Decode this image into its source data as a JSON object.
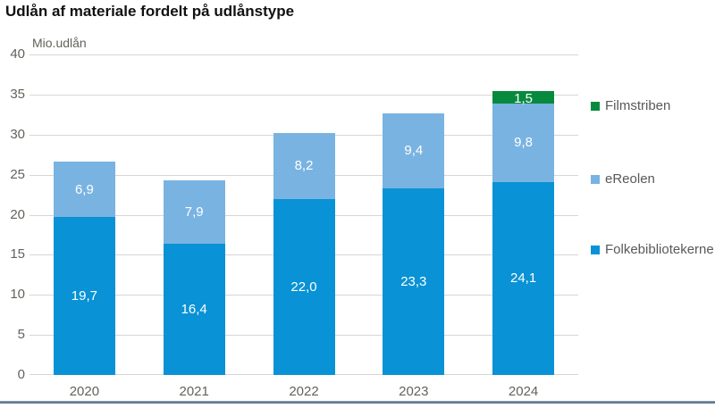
{
  "title": "Udlån af materiale fordelt på udlånstype",
  "chart_data": {
    "type": "bar",
    "stacked": true,
    "title": "Udlån af materiale fordelt på udlånstype",
    "ylabel": "Mio.udlån",
    "xlabel": "",
    "categories": [
      "2020",
      "2021",
      "2022",
      "2023",
      "2024"
    ],
    "series": [
      {
        "name": "Folkebibliotekerne",
        "color": "#0992d5",
        "values": [
          19.7,
          16.4,
          22.0,
          23.3,
          24.1
        ]
      },
      {
        "name": "eReolen",
        "color": "#79b3e2",
        "values": [
          6.9,
          7.9,
          8.2,
          9.4,
          9.8
        ]
      },
      {
        "name": "Filmstriben",
        "color": "#088a3e",
        "values": [
          null,
          null,
          null,
          null,
          1.5
        ]
      }
    ],
    "ylim": [
      0,
      40
    ],
    "yticks": [
      0,
      5,
      10,
      15,
      20,
      25,
      30,
      35,
      40
    ],
    "grid": true,
    "legend_position": "right",
    "value_label_format": "decimal-comma-1"
  },
  "colors": {
    "axis_text": "#63625b",
    "legend_text": "#595959",
    "gridline": "#d6d6d6",
    "bar_label": "#ffffff",
    "footer_stripe_top": "#97a6ad",
    "footer_stripe_bottom": "#4e7087"
  }
}
